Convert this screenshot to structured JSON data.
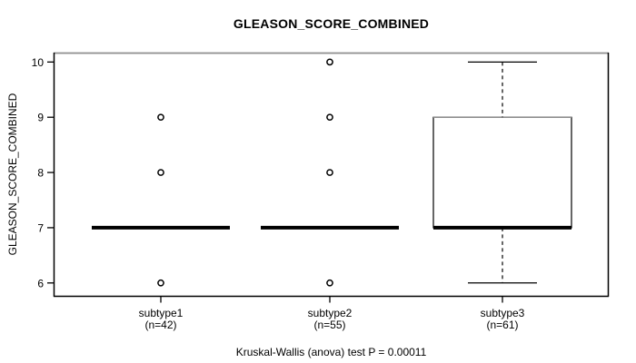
{
  "chart_data": {
    "type": "boxplot",
    "title": "GLEASON_SCORE_COMBINED",
    "ylabel": "GLEASON_SCORE_COMBINED",
    "footnote": "Kruskal-Wallis (anova) test P = 0.00011",
    "ylim": [
      5.75,
      10.17
    ],
    "yticks": [
      6,
      7,
      8,
      9,
      10
    ],
    "grid": false,
    "legend": "none",
    "groups": [
      {
        "label": "subtype1",
        "n": "(n=42)",
        "q1": 7,
        "median": 7,
        "q3": 7,
        "whisker_low": 7,
        "whisker_high": 7,
        "outliers": [
          9,
          8,
          6
        ]
      },
      {
        "label": "subtype2",
        "n": "(n=55)",
        "q1": 7,
        "median": 7,
        "q3": 7,
        "whisker_low": 7,
        "whisker_high": 7,
        "outliers": [
          10,
          9,
          8,
          6
        ]
      },
      {
        "label": "subtype3",
        "n": "(n=61)",
        "q1": 7,
        "median": 7,
        "q3": 9,
        "whisker_low": 6,
        "whisker_high": 10,
        "outliers": []
      }
    ],
    "colors": {
      "line": "#000000",
      "frame_top": "#8e8e8e",
      "box_fill": "#ffffff",
      "background": "#ffffff"
    }
  }
}
